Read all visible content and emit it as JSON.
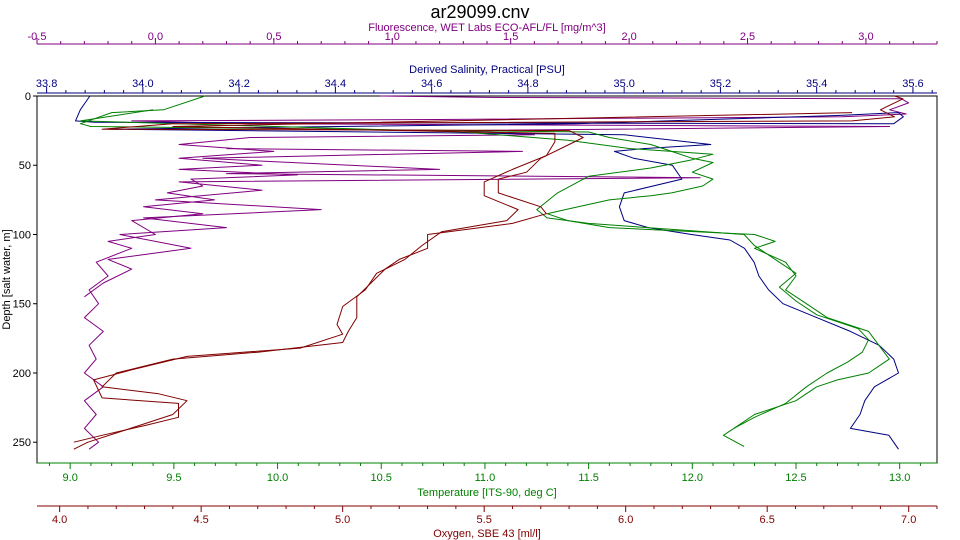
{
  "chart_data": {
    "type": "line",
    "title": "ar29099.cnv",
    "y_axis": {
      "label": "Depth [salt water, m]",
      "range": [
        0,
        265
      ],
      "inverted": true,
      "ticks": [
        0,
        50,
        100,
        150,
        200,
        250
      ]
    },
    "axes": [
      {
        "id": "fluor",
        "position": "top",
        "label": "Fluorescence, WET Labs ECO-AFL/FL [mg/m^3]",
        "color": "#800080",
        "range": [
          -0.5,
          3.3
        ],
        "ticks": [
          -0.5,
          0.0,
          0.5,
          1.0,
          1.5,
          2.0,
          2.5,
          3.0
        ],
        "tick_labels": [
          "-0.5",
          "0.0",
          "0.5",
          "1.0",
          "1.5",
          "2.0",
          "2.5",
          "3.0"
        ]
      },
      {
        "id": "sal",
        "position": "top",
        "label": "Derived Salinity, Practical [PSU]",
        "color": "#000080",
        "range": [
          33.78,
          35.65
        ],
        "ticks": [
          33.8,
          34.0,
          34.2,
          34.4,
          34.6,
          34.8,
          35.0,
          35.2,
          35.4,
          35.6
        ],
        "tick_labels": [
          "33.8",
          "34.0",
          "34.2",
          "34.4",
          "34.6",
          "34.8",
          "35.0",
          "35.2",
          "35.4",
          "35.6"
        ]
      },
      {
        "id": "temp",
        "position": "bottom",
        "label": "Temperature [ITS-90, deg C]",
        "color": "#008000",
        "range": [
          8.84,
          13.18
        ],
        "ticks": [
          9.0,
          9.5,
          10.0,
          10.5,
          11.0,
          11.5,
          12.0,
          12.5,
          13.0
        ],
        "tick_labels": [
          "9.0",
          "9.5",
          "10.0",
          "10.5",
          "11.0",
          "11.5",
          "12.0",
          "12.5",
          "13.0"
        ]
      },
      {
        "id": "oxy",
        "position": "bottom",
        "label": "Oxygen, SBE 43 [ml/l]",
        "color": "#800000",
        "range": [
          3.92,
          7.1
        ],
        "ticks": [
          4.0,
          4.5,
          5.0,
          5.5,
          6.0,
          6.5,
          7.0
        ],
        "tick_labels": [
          "4.0",
          "4.5",
          "5.0",
          "5.5",
          "6.0",
          "6.5",
          "7.0"
        ]
      }
    ],
    "series": [
      {
        "axis": "fluor",
        "color": "#800080",
        "name": "Fluorescence",
        "points": [
          [
            0.95,
            0
          ],
          [
            1.4,
            1
          ],
          [
            3.15,
            2
          ],
          [
            3.18,
            5
          ],
          [
            3.1,
            10
          ],
          [
            3.17,
            13
          ],
          [
            2.9,
            15
          ],
          [
            1.2,
            17
          ],
          [
            -0.1,
            18
          ],
          [
            0.4,
            20
          ],
          [
            3.1,
            22
          ],
          [
            1.3,
            25
          ],
          [
            1.6,
            28
          ],
          [
            0.4,
            30
          ],
          [
            0.1,
            35
          ],
          [
            0.5,
            40
          ],
          [
            0.1,
            45
          ],
          [
            0.45,
            50
          ],
          [
            0.1,
            53
          ],
          [
            0.6,
            57
          ],
          [
            0.15,
            60
          ],
          [
            0.2,
            65
          ],
          [
            0.05,
            70
          ],
          [
            0.25,
            75
          ],
          [
            -0.05,
            80
          ],
          [
            0.2,
            85
          ],
          [
            -0.1,
            90
          ],
          [
            0.0,
            100
          ],
          [
            -0.2,
            105
          ],
          [
            -0.1,
            110
          ],
          [
            -0.25,
            120
          ],
          [
            -0.2,
            130
          ],
          [
            -0.28,
            140
          ],
          [
            -0.24,
            150
          ],
          [
            -0.3,
            160
          ],
          [
            -0.22,
            170
          ],
          [
            -0.28,
            180
          ],
          [
            -0.25,
            190
          ],
          [
            -0.3,
            200
          ],
          [
            -0.22,
            210
          ],
          [
            -0.3,
            220
          ],
          [
            -0.25,
            230
          ],
          [
            -0.3,
            240
          ],
          [
            -0.24,
            250
          ],
          [
            -0.28,
            255
          ]
        ]
      },
      {
        "axis": "fluor",
        "color": "#800080",
        "name": "Fluorescence",
        "points": [
          [
            0.3,
            38
          ],
          [
            1.55,
            40
          ],
          [
            0.2,
            45
          ],
          [
            1.2,
            53
          ],
          [
            0.3,
            56
          ],
          [
            2.3,
            59
          ],
          [
            0.1,
            62
          ],
          [
            0.45,
            68
          ],
          [
            0.0,
            75
          ],
          [
            0.7,
            82
          ],
          [
            -0.05,
            88
          ],
          [
            0.3,
            95
          ],
          [
            -0.15,
            100
          ],
          [
            0.15,
            110
          ],
          [
            -0.2,
            118
          ],
          [
            -0.1,
            125
          ],
          [
            -0.22,
            135
          ],
          [
            -0.3,
            145
          ]
        ]
      },
      {
        "axis": "sal",
        "color": "#000080",
        "name": "Salinity",
        "points": [
          [
            33.89,
            0
          ],
          [
            33.88,
            5
          ],
          [
            33.87,
            10
          ],
          [
            33.86,
            18
          ],
          [
            33.9,
            19
          ],
          [
            35.56,
            20
          ],
          [
            35.58,
            15
          ],
          [
            35.57,
            12
          ],
          [
            35.45,
            14
          ],
          [
            34.9,
            20
          ],
          [
            33.93,
            24
          ],
          [
            35.0,
            28
          ],
          [
            35.18,
            35
          ],
          [
            35.04,
            38
          ],
          [
            34.98,
            40
          ],
          [
            35.02,
            45
          ],
          [
            35.1,
            50
          ],
          [
            35.12,
            60
          ],
          [
            35.0,
            70
          ],
          [
            34.99,
            80
          ],
          [
            35.0,
            90
          ],
          [
            35.05,
            95
          ],
          [
            35.14,
            100
          ],
          [
            35.22,
            104
          ],
          [
            35.25,
            110
          ],
          [
            35.26,
            115
          ],
          [
            35.27,
            120
          ],
          [
            35.28,
            130
          ],
          [
            35.3,
            140
          ],
          [
            35.33,
            150
          ],
          [
            35.4,
            160
          ],
          [
            35.47,
            170
          ],
          [
            35.53,
            180
          ],
          [
            35.56,
            190
          ],
          [
            35.57,
            200
          ],
          [
            35.52,
            210
          ],
          [
            35.5,
            220
          ],
          [
            35.49,
            230
          ],
          [
            35.47,
            240
          ],
          [
            35.55,
            245
          ],
          [
            35.57,
            255
          ]
        ]
      },
      {
        "axis": "temp",
        "color": "#008000",
        "name": "Temperature",
        "points": [
          [
            9.65,
            0
          ],
          [
            9.45,
            10
          ],
          [
            9.2,
            12
          ],
          [
            9.05,
            20
          ],
          [
            9.1,
            22
          ],
          [
            11.5,
            26
          ],
          [
            11.6,
            30
          ],
          [
            11.8,
            35
          ],
          [
            11.9,
            40
          ],
          [
            12.0,
            45
          ],
          [
            12.1,
            48
          ],
          [
            12.0,
            55
          ],
          [
            12.1,
            60
          ],
          [
            12.05,
            65
          ],
          [
            11.9,
            70
          ],
          [
            11.8,
            72
          ],
          [
            11.6,
            75
          ],
          [
            11.45,
            80
          ],
          [
            11.3,
            85
          ],
          [
            11.4,
            90
          ],
          [
            11.6,
            95
          ],
          [
            12.3,
            100
          ],
          [
            12.4,
            105
          ],
          [
            12.3,
            110
          ],
          [
            12.45,
            120
          ],
          [
            12.5,
            130
          ],
          [
            12.45,
            140
          ],
          [
            12.55,
            150
          ],
          [
            12.65,
            160
          ],
          [
            12.85,
            170
          ],
          [
            12.9,
            180
          ],
          [
            12.95,
            190
          ],
          [
            12.9,
            195
          ],
          [
            12.85,
            200
          ],
          [
            12.7,
            205
          ],
          [
            12.6,
            210
          ],
          [
            12.5,
            220
          ],
          [
            12.3,
            230
          ],
          [
            12.2,
            240
          ],
          [
            12.15,
            245
          ],
          [
            12.25,
            253
          ]
        ]
      },
      {
        "axis": "temp",
        "color": "#008000",
        "name": "Temperature",
        "points": [
          [
            9.4,
            10
          ],
          [
            9.05,
            18
          ],
          [
            10.9,
            26
          ],
          [
            11.4,
            32
          ],
          [
            11.7,
            38
          ],
          [
            12.1,
            42
          ],
          [
            12.0,
            46
          ],
          [
            11.8,
            52
          ],
          [
            11.5,
            58
          ],
          [
            11.35,
            70
          ],
          [
            11.25,
            82
          ],
          [
            11.3,
            88
          ],
          [
            11.5,
            92
          ],
          [
            12.25,
            100
          ],
          [
            12.3,
            108
          ],
          [
            12.4,
            118
          ],
          [
            12.5,
            128
          ],
          [
            12.42,
            138
          ],
          [
            12.5,
            148
          ],
          [
            12.6,
            158
          ],
          [
            12.8,
            168
          ],
          [
            12.85,
            176
          ],
          [
            12.82,
            185
          ],
          [
            12.75,
            192
          ],
          [
            12.65,
            200
          ],
          [
            12.55,
            210
          ],
          [
            12.45,
            222
          ],
          [
            12.3,
            232
          ],
          [
            12.2,
            240
          ]
        ]
      },
      {
        "axis": "oxy",
        "color": "#800000",
        "name": "Oxygen",
        "points": [
          [
            6.95,
            0
          ],
          [
            6.98,
            2
          ],
          [
            6.95,
            5
          ],
          [
            6.9,
            10
          ],
          [
            6.95,
            15
          ],
          [
            6.8,
            18
          ],
          [
            4.4,
            20
          ],
          [
            4.15,
            24
          ],
          [
            5.8,
            25
          ],
          [
            5.85,
            30
          ],
          [
            5.8,
            35
          ],
          [
            5.7,
            45
          ],
          [
            5.65,
            55
          ],
          [
            5.55,
            60
          ],
          [
            5.55,
            70
          ],
          [
            5.7,
            80
          ],
          [
            5.72,
            85
          ],
          [
            5.6,
            92
          ],
          [
            5.3,
            100
          ],
          [
            5.3,
            110
          ],
          [
            5.2,
            118
          ],
          [
            5.15,
            125
          ],
          [
            5.1,
            135
          ],
          [
            5.05,
            145
          ],
          [
            5.05,
            160
          ],
          [
            5.02,
            170
          ],
          [
            5.0,
            178
          ],
          [
            4.7,
            185
          ],
          [
            4.4,
            190
          ],
          [
            4.2,
            200
          ],
          [
            4.15,
            210
          ],
          [
            4.35,
            215
          ],
          [
            4.45,
            220
          ],
          [
            4.4,
            230
          ],
          [
            4.25,
            240
          ],
          [
            4.1,
            250
          ],
          [
            4.05,
            255
          ]
        ]
      },
      {
        "axis": "oxy",
        "color": "#800000",
        "name": "Oxygen",
        "points": [
          [
            6.8,
            12
          ],
          [
            4.4,
            22
          ],
          [
            5.75,
            27
          ],
          [
            5.75,
            33
          ],
          [
            5.72,
            43
          ],
          [
            5.6,
            53
          ],
          [
            5.5,
            62
          ],
          [
            5.5,
            72
          ],
          [
            5.62,
            82
          ],
          [
            5.58,
            90
          ],
          [
            5.35,
            98
          ],
          [
            5.28,
            108
          ],
          [
            5.22,
            118
          ],
          [
            5.12,
            128
          ],
          [
            5.08,
            140
          ],
          [
            5.0,
            152
          ],
          [
            4.98,
            165
          ],
          [
            5.0,
            172
          ],
          [
            4.85,
            182
          ],
          [
            4.45,
            188
          ],
          [
            4.25,
            198
          ],
          [
            4.12,
            205
          ],
          [
            4.15,
            218
          ],
          [
            4.42,
            222
          ],
          [
            4.42,
            232
          ],
          [
            4.3,
            238
          ],
          [
            4.15,
            245
          ],
          [
            4.05,
            250
          ]
        ]
      }
    ]
  }
}
